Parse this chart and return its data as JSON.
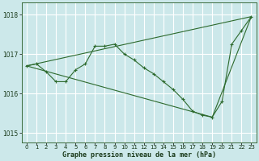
{
  "title": "Graphe pression niveau de la mer (hPa)",
  "background_color": "#cce8ea",
  "grid_color": "#ffffff",
  "line_color": "#2d6a2d",
  "xlim": [
    -0.5,
    23.5
  ],
  "ylim": [
    1014.75,
    1018.3
  ],
  "yticks": [
    1015,
    1016,
    1017,
    1018
  ],
  "xticks": [
    0,
    1,
    2,
    3,
    4,
    5,
    6,
    7,
    8,
    9,
    10,
    11,
    12,
    13,
    14,
    15,
    16,
    17,
    18,
    19,
    20,
    21,
    22,
    23
  ],
  "series1": {
    "x": [
      0,
      1,
      2,
      3,
      4,
      5,
      6,
      7,
      8,
      9,
      10,
      11,
      12,
      13,
      14,
      15,
      16,
      17,
      18,
      19,
      20,
      21,
      22,
      23
    ],
    "y": [
      1016.7,
      1016.75,
      1016.55,
      1016.3,
      1016.3,
      1016.6,
      1016.75,
      1017.2,
      1017.2,
      1017.25,
      1017.0,
      1016.85,
      1016.65,
      1016.5,
      1016.3,
      1016.1,
      1015.85,
      1015.55,
      1015.45,
      1015.4,
      1015.8,
      1017.25,
      1017.6,
      1017.95
    ]
  },
  "series2": {
    "x": [
      0,
      23
    ],
    "y": [
      1016.7,
      1017.95
    ]
  },
  "series3": {
    "x": [
      0,
      19,
      23
    ],
    "y": [
      1016.7,
      1015.4,
      1017.95
    ]
  }
}
